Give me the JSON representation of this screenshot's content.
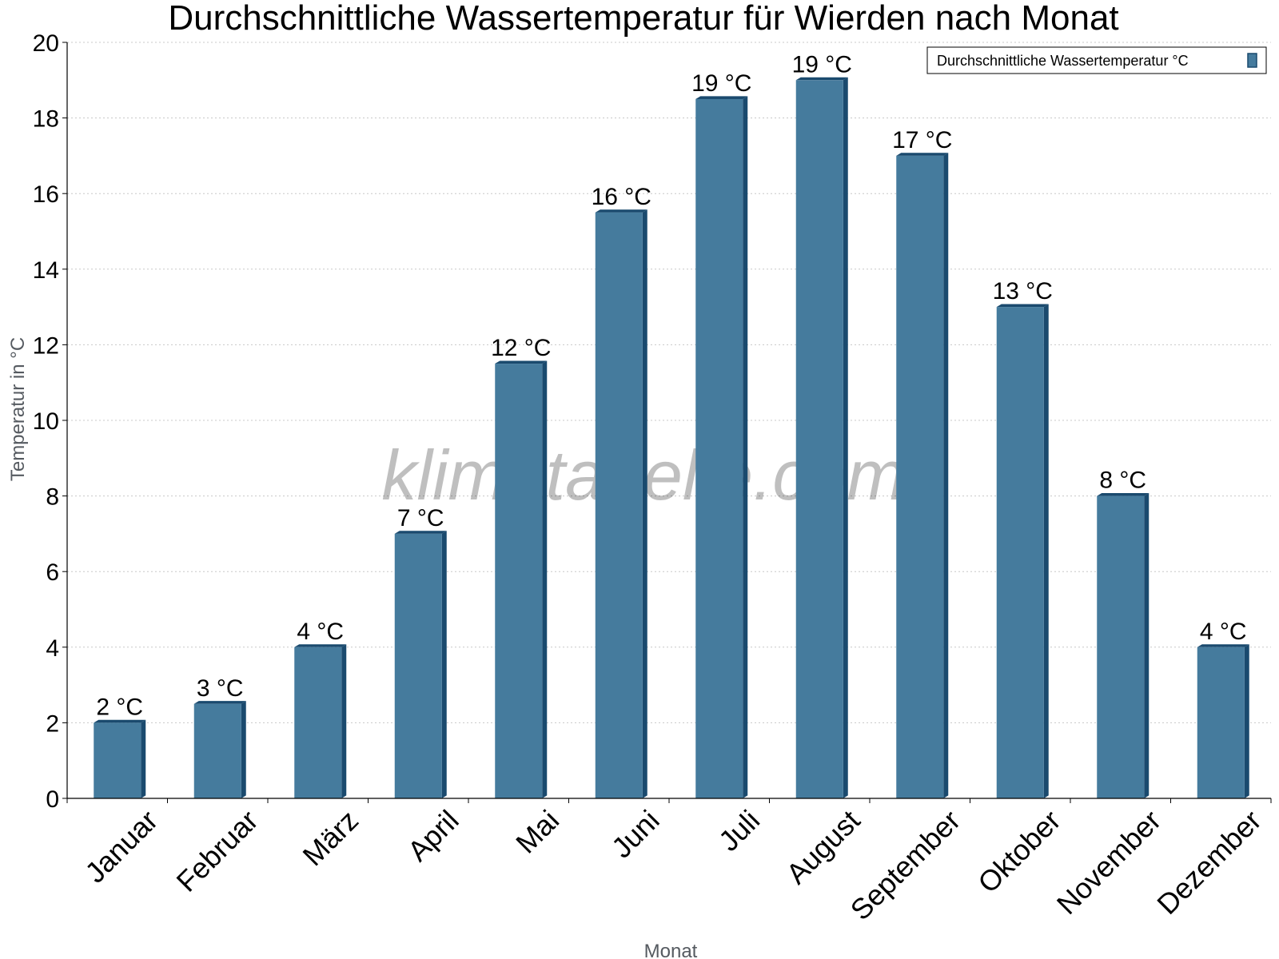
{
  "watermark": "klimatabelle.com",
  "chart_data": {
    "type": "bar",
    "title": "Durchschnittliche Wassertemperatur für Wierden nach Monat",
    "xlabel": "Monat",
    "ylabel": "Temperatur in °C",
    "ylim": [
      0,
      20
    ],
    "yticks": [
      0,
      2,
      4,
      6,
      8,
      10,
      12,
      14,
      16,
      18,
      20
    ],
    "grid": true,
    "legend_position": "top-right",
    "categories": [
      "Januar",
      "Februar",
      "März",
      "April",
      "Mai",
      "Juni",
      "Juli",
      "August",
      "September",
      "Oktober",
      "November",
      "Dezember"
    ],
    "series": [
      {
        "name": "Durchschnittliche Wassertemperatur °C",
        "color": "#457b9d",
        "values": [
          2,
          2.5,
          4,
          7,
          11.5,
          15.5,
          18.5,
          19,
          17,
          13,
          8,
          4
        ],
        "labels": [
          "2 °C",
          "3 °C",
          "4 °C",
          "7 °C",
          "12 °C",
          "16 °C",
          "19 °C",
          "19 °C",
          "17 °C",
          "13 °C",
          "8 °C",
          "4 °C"
        ]
      }
    ]
  }
}
